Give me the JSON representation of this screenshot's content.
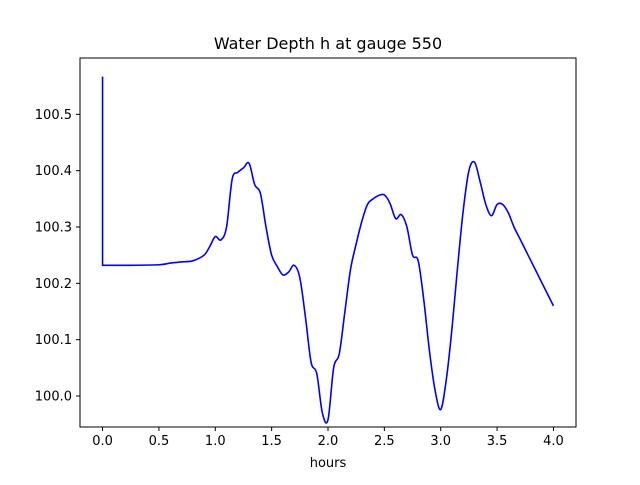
{
  "chart_data": {
    "type": "line",
    "title": "Water Depth h at gauge 550",
    "xlabel": "hours",
    "ylabel": "",
    "xlim": [
      -0.2,
      4.2
    ],
    "ylim": [
      99.945,
      100.6
    ],
    "xticks": [
      0.0,
      0.5,
      1.0,
      1.5,
      2.0,
      2.5,
      3.0,
      3.5,
      4.0
    ],
    "xtick_labels": [
      "0.0",
      "0.5",
      "1.0",
      "1.5",
      "2.0",
      "2.5",
      "3.0",
      "3.5",
      "4.0"
    ],
    "yticks": [
      100.0,
      100.1,
      100.2,
      100.3,
      100.4,
      100.5
    ],
    "ytick_labels": [
      "100.0",
      "100.1",
      "100.2",
      "100.3",
      "100.4",
      "100.5"
    ],
    "grid": false,
    "series": [
      {
        "color": "#0000ff",
        "x": [
          0.0,
          0.0,
          0.2,
          0.5,
          0.6,
          0.7,
          0.8,
          0.9,
          0.95,
          1.0,
          1.05,
          1.1,
          1.15,
          1.2,
          1.25,
          1.3,
          1.35,
          1.4,
          1.45,
          1.5,
          1.55,
          1.6,
          1.65,
          1.7,
          1.75,
          1.8,
          1.85,
          1.9,
          1.95,
          2.0,
          2.05,
          2.1,
          2.15,
          2.2,
          2.25,
          2.3,
          2.35,
          2.4,
          2.45,
          2.5,
          2.55,
          2.6,
          2.65,
          2.7,
          2.75,
          2.8,
          2.85,
          2.9,
          2.95,
          3.0,
          3.05,
          3.1,
          3.15,
          3.2,
          3.25,
          3.3,
          3.35,
          3.4,
          3.45,
          3.5,
          3.55,
          3.6,
          3.65,
          3.7,
          3.75,
          3.8,
          3.85,
          3.9,
          3.95,
          4.0
        ],
        "y": [
          100.567,
          100.232,
          100.232,
          100.233,
          100.236,
          100.238,
          100.24,
          100.25,
          100.265,
          100.283,
          100.277,
          100.3,
          100.385,
          100.397,
          100.405,
          100.413,
          100.375,
          100.36,
          100.3,
          100.25,
          100.23,
          100.215,
          100.22,
          100.232,
          100.21,
          100.14,
          100.06,
          100.04,
          99.97,
          99.958,
          100.05,
          100.075,
          100.15,
          100.225,
          100.27,
          100.31,
          100.34,
          100.35,
          100.356,
          100.357,
          100.342,
          100.315,
          100.322,
          100.3,
          100.25,
          100.24,
          100.17,
          100.08,
          100.01,
          99.976,
          100.03,
          100.12,
          100.23,
          100.33,
          100.4,
          100.415,
          100.38,
          100.34,
          100.32,
          100.34,
          100.34,
          100.325,
          100.3,
          100.28,
          100.26,
          100.24,
          100.22,
          100.2,
          100.18,
          100.16
        ]
      }
    ]
  }
}
